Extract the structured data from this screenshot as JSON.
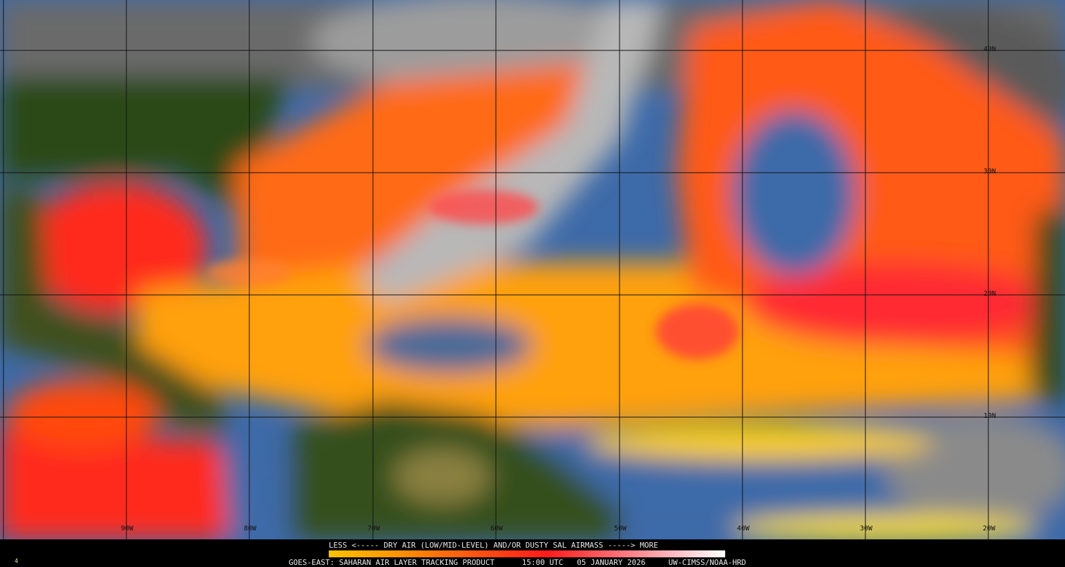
{
  "map": {
    "product": "GOES-EAST: SAHARAN AIR LAYER TRACKING PRODUCT",
    "time": "15:00 UTC",
    "date": "05 JANUARY 2026",
    "credit": "UW-CIMSS/NOAA-HRD",
    "frame": "4",
    "longitude_labels": [
      "90W",
      "80W",
      "70W",
      "60W",
      "50W",
      "40W",
      "30W",
      "20W"
    ],
    "latitude_labels": [
      "40N",
      "30N",
      "20N",
      "10N"
    ]
  },
  "legend": {
    "title": "LESS <----- DRY AIR (LOW/MID-LEVEL) AND/OR DUSTY SAL AIRMASS -----> MORE",
    "colors": [
      "#ffc200",
      "#ff9a00",
      "#ff1a1a",
      "#ffc0c8",
      "#ffffff"
    ]
  },
  "palette": {
    "ocean_moist": "#3d6aa8",
    "land": "#2a4a14",
    "cloud": "#9a9a9a"
  }
}
